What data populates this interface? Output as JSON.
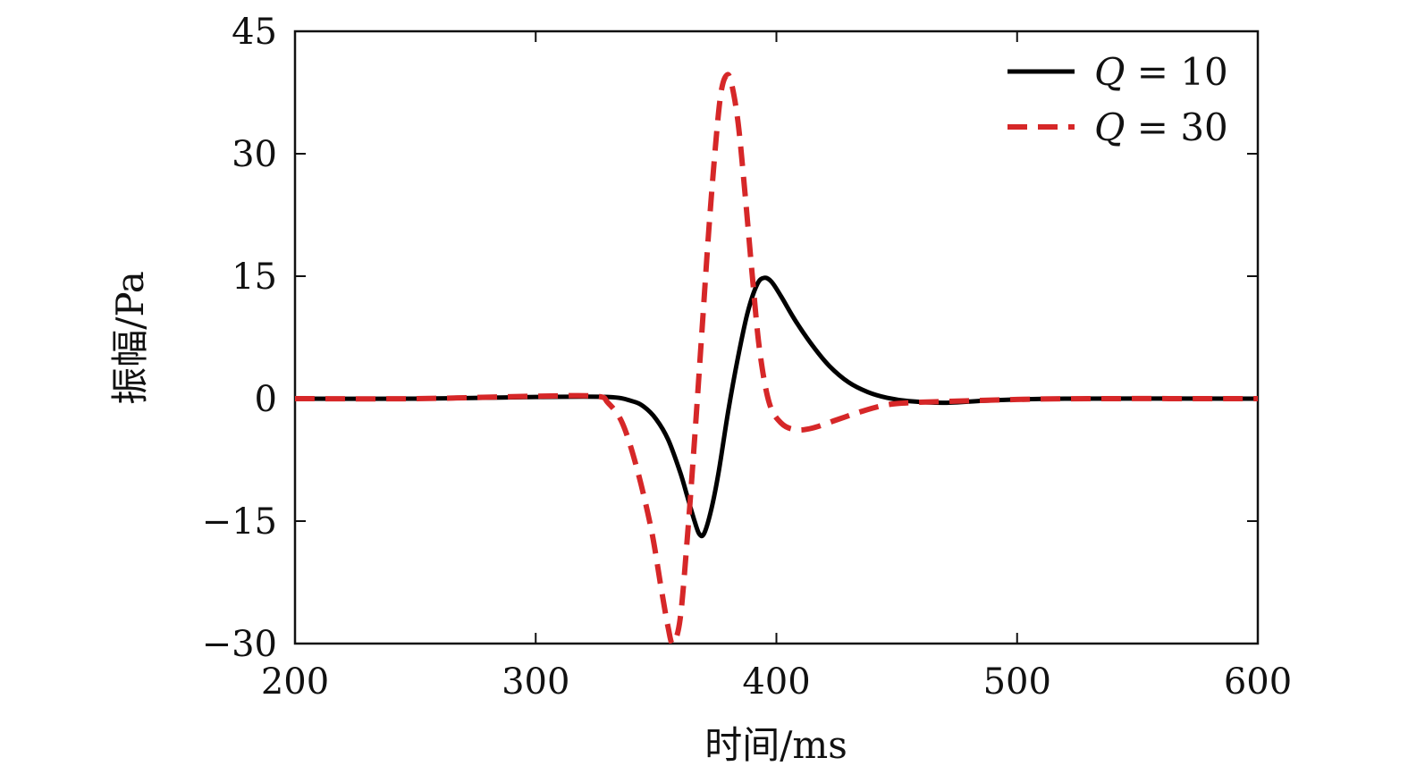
{
  "chart_data": {
    "type": "line",
    "xlabel": "时间/ms",
    "ylabel": "振幅/Pa",
    "xlim": [
      200,
      600
    ],
    "ylim": [
      -30,
      45
    ],
    "xticks": [
      200,
      300,
      400,
      500,
      600
    ],
    "yticks": [
      -30,
      -15,
      0,
      15,
      30,
      45
    ],
    "xtick_labels": [
      "200",
      "300",
      "400",
      "500",
      "600"
    ],
    "ytick_labels": [
      "−30",
      "−15",
      "0",
      "15",
      "30",
      "45"
    ],
    "grid": false,
    "legend_position": "top-right",
    "series": [
      {
        "name": "Q = 10",
        "name_var": "Q",
        "name_rest": " = 10",
        "style": "solid",
        "color": "#000000",
        "points": [
          [
            200,
            0
          ],
          [
            250,
            0
          ],
          [
            300,
            0.2
          ],
          [
            330,
            0.2
          ],
          [
            340,
            -0.3
          ],
          [
            345,
            -1.0
          ],
          [
            350,
            -2.5
          ],
          [
            355,
            -5.0
          ],
          [
            360,
            -9.0
          ],
          [
            363,
            -12.0
          ],
          [
            366,
            -15.0
          ],
          [
            368,
            -16.6
          ],
          [
            370,
            -16.5
          ],
          [
            373,
            -13.5
          ],
          [
            376,
            -9.0
          ],
          [
            380,
            -1.5
          ],
          [
            384,
            5.0
          ],
          [
            388,
            10.5
          ],
          [
            392,
            14.0
          ],
          [
            395,
            14.8
          ],
          [
            398,
            14.3
          ],
          [
            402,
            12.5
          ],
          [
            408,
            9.5
          ],
          [
            415,
            6.5
          ],
          [
            422,
            4.0
          ],
          [
            430,
            2.0
          ],
          [
            438,
            0.8
          ],
          [
            446,
            0.1
          ],
          [
            455,
            -0.3
          ],
          [
            470,
            -0.5
          ],
          [
            490,
            -0.2
          ],
          [
            520,
            0
          ],
          [
            600,
            0
          ]
        ]
      },
      {
        "name": "Q = 30",
        "name_var": "Q",
        "name_rest": " = 30",
        "style": "dashed",
        "color": "#d62728",
        "points": [
          [
            200,
            0
          ],
          [
            250,
            0
          ],
          [
            300,
            0.3
          ],
          [
            325,
            0.3
          ],
          [
            330,
            -0.5
          ],
          [
            336,
            -3.0
          ],
          [
            342,
            -8.5
          ],
          [
            348,
            -16.0
          ],
          [
            352,
            -23.0
          ],
          [
            355,
            -28.0
          ],
          [
            357,
            -30.0
          ],
          [
            360,
            -27.0
          ],
          [
            363,
            -17.0
          ],
          [
            366,
            -5.0
          ],
          [
            369,
            8.0
          ],
          [
            372,
            21.0
          ],
          [
            375,
            32.0
          ],
          [
            377,
            37.5
          ],
          [
            379,
            39.5
          ],
          [
            381,
            39.0
          ],
          [
            384,
            34.0
          ],
          [
            387,
            25.0
          ],
          [
            390,
            15.0
          ],
          [
            393,
            6.0
          ],
          [
            397,
            -0.5
          ],
          [
            402,
            -3.0
          ],
          [
            408,
            -3.8
          ],
          [
            415,
            -3.6
          ],
          [
            425,
            -2.6
          ],
          [
            435,
            -1.6
          ],
          [
            445,
            -0.8
          ],
          [
            455,
            -0.5
          ],
          [
            475,
            -0.3
          ],
          [
            500,
            -0.1
          ],
          [
            530,
            0
          ],
          [
            600,
            0
          ]
        ]
      }
    ]
  }
}
